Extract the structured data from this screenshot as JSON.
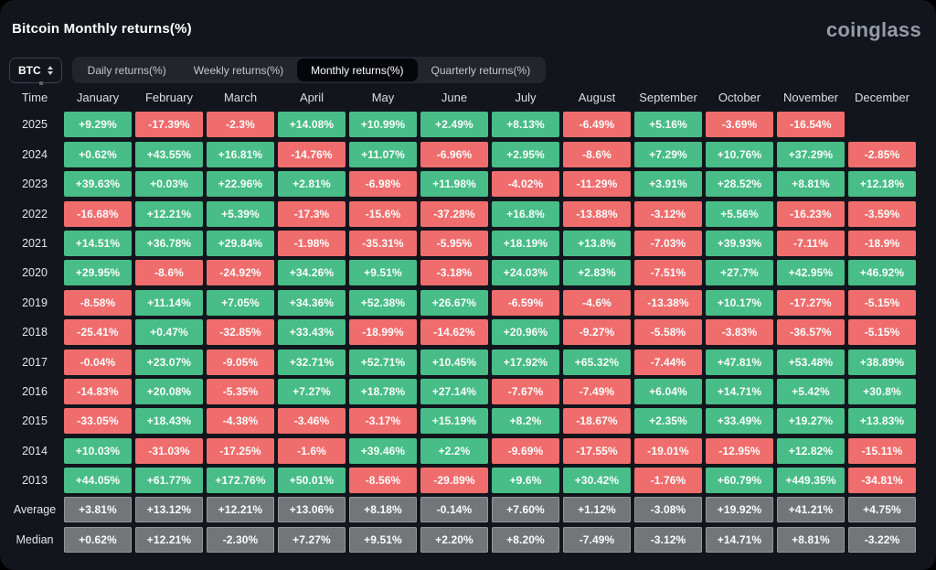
{
  "page": {
    "title": "Bitcoin Monthly returns(%)",
    "logo": "coinglass"
  },
  "controls": {
    "coin_selector": {
      "value": "BTC"
    },
    "tabs": [
      {
        "label": "Daily returns(%)",
        "active": false
      },
      {
        "label": "Weekly returns(%)",
        "active": false
      },
      {
        "label": "Monthly returns(%)",
        "active": true
      },
      {
        "label": "Quarterly returns(%)",
        "active": false
      }
    ]
  },
  "colors": {
    "positive": "#48bd87",
    "negative": "#f06d6d",
    "summary": "#737579",
    "background": "#12151c"
  },
  "table": {
    "columns": [
      "Time",
      "January",
      "February",
      "March",
      "April",
      "May",
      "June",
      "July",
      "August",
      "September",
      "October",
      "November",
      "December"
    ],
    "rows": [
      {
        "time": "2025",
        "type": "year",
        "values": [
          "+9.29%",
          "-17.39%",
          "-2.3%",
          "+14.08%",
          "+10.99%",
          "+2.49%",
          "+8.13%",
          "-6.49%",
          "+5.16%",
          "-3.69%",
          "-16.54%",
          ""
        ]
      },
      {
        "time": "2024",
        "type": "year",
        "values": [
          "+0.62%",
          "+43.55%",
          "+16.81%",
          "-14.76%",
          "+11.07%",
          "-6.96%",
          "+2.95%",
          "-8.6%",
          "+7.29%",
          "+10.76%",
          "+37.29%",
          "-2.85%"
        ]
      },
      {
        "time": "2023",
        "type": "year",
        "values": [
          "+39.63%",
          "+0.03%",
          "+22.96%",
          "+2.81%",
          "-6.98%",
          "+11.98%",
          "-4.02%",
          "-11.29%",
          "+3.91%",
          "+28.52%",
          "+8.81%",
          "+12.18%"
        ]
      },
      {
        "time": "2022",
        "type": "year",
        "values": [
          "-16.68%",
          "+12.21%",
          "+5.39%",
          "-17.3%",
          "-15.6%",
          "-37.28%",
          "+16.8%",
          "-13.88%",
          "-3.12%",
          "+5.56%",
          "-16.23%",
          "-3.59%"
        ]
      },
      {
        "time": "2021",
        "type": "year",
        "values": [
          "+14.51%",
          "+36.78%",
          "+29.84%",
          "-1.98%",
          "-35.31%",
          "-5.95%",
          "+18.19%",
          "+13.8%",
          "-7.03%",
          "+39.93%",
          "-7.11%",
          "-18.9%"
        ]
      },
      {
        "time": "2020",
        "type": "year",
        "values": [
          "+29.95%",
          "-8.6%",
          "-24.92%",
          "+34.26%",
          "+9.51%",
          "-3.18%",
          "+24.03%",
          "+2.83%",
          "-7.51%",
          "+27.7%",
          "+42.95%",
          "+46.92%"
        ]
      },
      {
        "time": "2019",
        "type": "year",
        "values": [
          "-8.58%",
          "+11.14%",
          "+7.05%",
          "+34.36%",
          "+52.38%",
          "+26.67%",
          "-6.59%",
          "-4.6%",
          "-13.38%",
          "+10.17%",
          "-17.27%",
          "-5.15%"
        ]
      },
      {
        "time": "2018",
        "type": "year",
        "values": [
          "-25.41%",
          "+0.47%",
          "-32.85%",
          "+33.43%",
          "-18.99%",
          "-14.62%",
          "+20.96%",
          "-9.27%",
          "-5.58%",
          "-3.83%",
          "-36.57%",
          "-5.15%"
        ]
      },
      {
        "time": "2017",
        "type": "year",
        "values": [
          "-0.04%",
          "+23.07%",
          "-9.05%",
          "+32.71%",
          "+52.71%",
          "+10.45%",
          "+17.92%",
          "+65.32%",
          "-7.44%",
          "+47.81%",
          "+53.48%",
          "+38.89%"
        ]
      },
      {
        "time": "2016",
        "type": "year",
        "values": [
          "-14.83%",
          "+20.08%",
          "-5.35%",
          "+7.27%",
          "+18.78%",
          "+27.14%",
          "-7.67%",
          "-7.49%",
          "+6.04%",
          "+14.71%",
          "+5.42%",
          "+30.8%"
        ]
      },
      {
        "time": "2015",
        "type": "year",
        "values": [
          "-33.05%",
          "+18.43%",
          "-4.38%",
          "-3.46%",
          "-3.17%",
          "+15.19%",
          "+8.2%",
          "-18.67%",
          "+2.35%",
          "+33.49%",
          "+19.27%",
          "+13.83%"
        ]
      },
      {
        "time": "2014",
        "type": "year",
        "values": [
          "+10.03%",
          "-31.03%",
          "-17.25%",
          "-1.6%",
          "+39.46%",
          "+2.2%",
          "-9.69%",
          "-17.55%",
          "-19.01%",
          "-12.95%",
          "+12.82%",
          "-15.11%"
        ]
      },
      {
        "time": "2013",
        "type": "year",
        "values": [
          "+44.05%",
          "+61.77%",
          "+172.76%",
          "+50.01%",
          "-8.56%",
          "-29.89%",
          "+9.6%",
          "+30.42%",
          "-1.76%",
          "+60.79%",
          "+449.35%",
          "-34.81%"
        ]
      },
      {
        "time": "Average",
        "type": "summary",
        "values": [
          "+3.81%",
          "+13.12%",
          "+12.21%",
          "+13.06%",
          "+8.18%",
          "-0.14%",
          "+7.60%",
          "+1.12%",
          "-3.08%",
          "+19.92%",
          "+41.21%",
          "+4.75%"
        ]
      },
      {
        "time": "Median",
        "type": "summary",
        "values": [
          "+0.62%",
          "+12.21%",
          "-2.30%",
          "+7.27%",
          "+9.51%",
          "+2.20%",
          "+8.20%",
          "-7.49%",
          "-3.12%",
          "+14.71%",
          "+8.81%",
          "-3.22%"
        ]
      }
    ]
  }
}
